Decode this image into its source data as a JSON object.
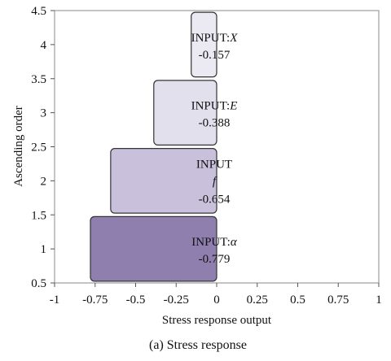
{
  "chart_data": {
    "type": "bar",
    "orientation": "horizontal",
    "caption": "(a) Stress response",
    "xlabel": "Stress response output",
    "ylabel": "Ascending order",
    "xlim": [
      -1,
      1
    ],
    "ylim": [
      0.5,
      4.5
    ],
    "x_ticks": [
      "-1",
      "-0.75",
      "-0.5",
      "-0.25",
      "0",
      "0.25",
      "0.5",
      "0.75",
      "1"
    ],
    "y_ticks": [
      "0.5",
      "1",
      "1.5",
      "2",
      "2.5",
      "3",
      "3.5",
      "4",
      "4.5"
    ],
    "grid": false,
    "bars": [
      {
        "position": 1,
        "value": -0.779,
        "label_prefix": "INPUT:",
        "label_symbol": "α",
        "value_label": "-0.779",
        "color": "#8e7fae"
      },
      {
        "position": 2,
        "value": -0.654,
        "label_prefix": "INPUT",
        "label_symbol": "f",
        "value_label": "-0.654",
        "color": "#c9c1dc"
      },
      {
        "position": 3,
        "value": -0.388,
        "label_prefix": "INPUT:",
        "label_symbol": "E",
        "value_label": "-0.388",
        "color": "#e3e0ed"
      },
      {
        "position": 4,
        "value": -0.157,
        "label_prefix": "INPUT:",
        "label_symbol": "X",
        "value_label": "-0.157",
        "color": "#ebe9f2"
      }
    ]
  }
}
